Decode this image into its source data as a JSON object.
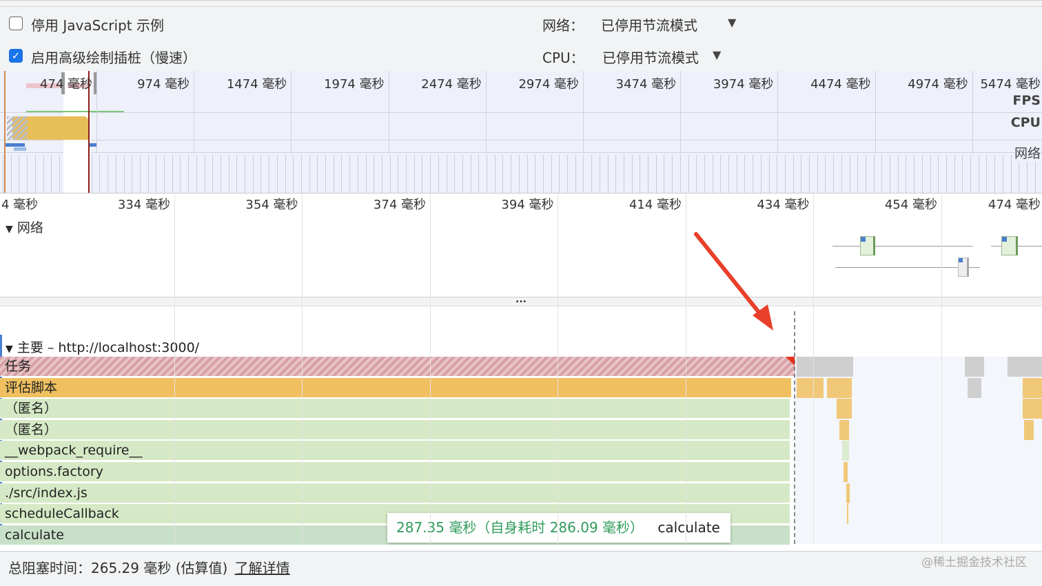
{
  "toolbar": {
    "disable_js_samples": {
      "label": "停用 JavaScript 示例",
      "checked": false
    },
    "advanced_paint": {
      "label": "启用高级绘制插桩（慢速）",
      "checked": true
    },
    "network_label": "网络：",
    "network_value": "已停用节流模式",
    "cpu_label": "CPU：",
    "cpu_value": "已停用节流模式"
  },
  "overview": {
    "ticks": [
      "474 毫秒",
      "974 毫秒",
      "1474 毫秒",
      "1974 毫秒",
      "2474 毫秒",
      "2974 毫秒",
      "3474 毫秒",
      "3974 毫秒",
      "4474 毫秒",
      "4974 毫秒",
      "5474 毫秒"
    ],
    "side_labels": [
      "FPS",
      "CPU",
      "网络"
    ]
  },
  "ruler": {
    "ticks": [
      "4 毫秒",
      "334 毫秒",
      "354 毫秒",
      "374 毫秒",
      "394 毫秒",
      "414 毫秒",
      "434 毫秒",
      "454 毫秒",
      "474 毫秒"
    ]
  },
  "network_track": {
    "title": "网络"
  },
  "divider_label": "...",
  "main_track": {
    "title": "主要 – http://localhost:3000/"
  },
  "flame": {
    "rows": [
      "任务",
      "评估脚本",
      "（匿名）",
      "（匿名）",
      "__webpack_require__",
      "options.factory",
      "./src/index.js",
      "scheduleCallback",
      "calculate"
    ],
    "colors": {
      "task": "#d8a4a8",
      "script": "#f0c060",
      "js": "#d6e9c6",
      "calculate": "#c8e0c8"
    }
  },
  "tooltip": {
    "duration": "287.35 毫秒（自身耗时 286.09 毫秒）",
    "name": "calculate"
  },
  "footer": {
    "label": "总阻塞时间：265.29 毫秒 (估算值)",
    "link": "了解详情"
  },
  "watermark": "@稀土掘金技术社区"
}
